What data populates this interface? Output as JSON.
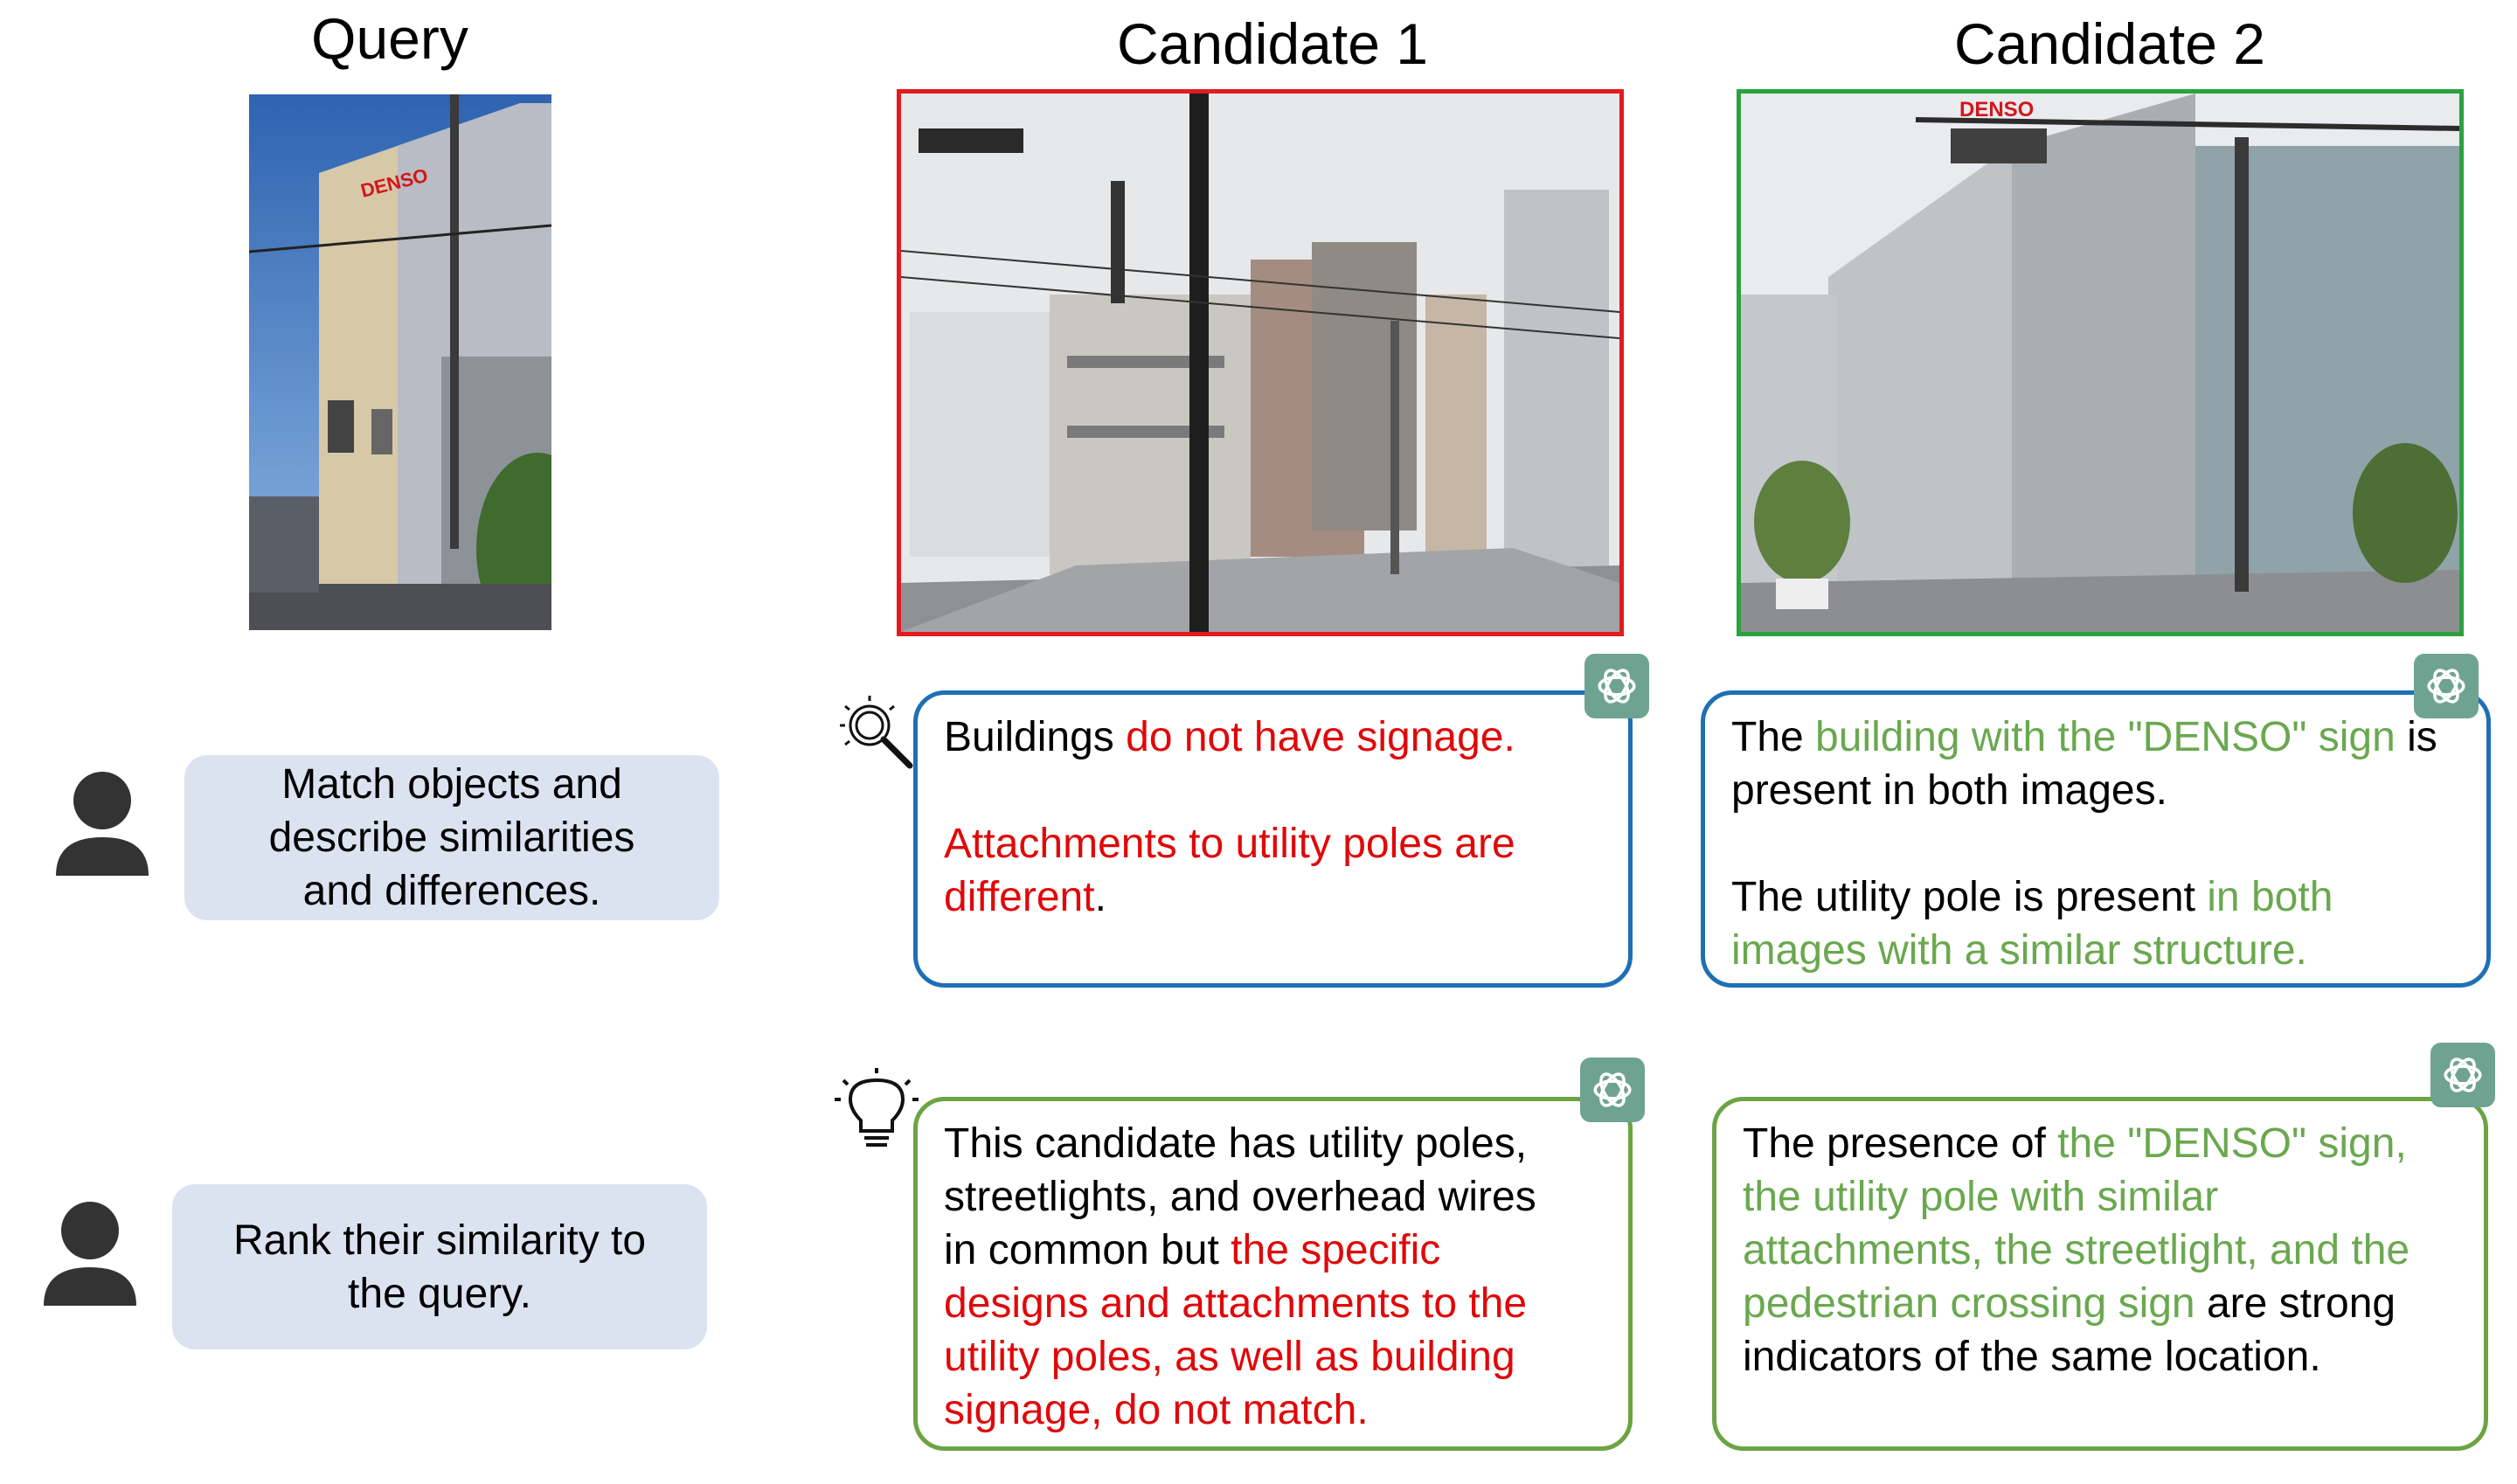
{
  "columns": {
    "query": "Query",
    "candidate1": "Candidate 1",
    "candidate2": "Candidate 2"
  },
  "sign_text": "DENSO",
  "prompts": {
    "p1": [
      "Match objects and",
      "describe similarities",
      "and differences."
    ],
    "p2": [
      "Rank their similarity to",
      "the query."
    ]
  },
  "responses": {
    "c1_describe": {
      "l1a": "Buildings ",
      "l1b": "do not have signage.",
      "l2": "Attachments to utility poles are",
      "l3a": "different",
      "l3b": "."
    },
    "c2_describe": {
      "l1a": "The ",
      "l1b": "building with the \"DENSO\" sign",
      "l1c": " is",
      "l2": "present in both images.",
      "l3a": "The utility pole is present ",
      "l3b": "in both",
      "l4": "images with a similar structure."
    },
    "c1_rank": {
      "l1": "This candidate has utility poles,",
      "l2": "streetlights, and overhead wires",
      "l3a": "in common but ",
      "l3b": "the specific",
      "l4": "designs and attachments to the",
      "l5": "utility poles, as well as building",
      "l6": "signage, do not match."
    },
    "c2_rank": {
      "l1a": "The presence of ",
      "l1b": "the \"DENSO\" sign,",
      "l2": "the utility pole with similar",
      "l3": "attachments, the streetlight, and the",
      "l4a": "pedestrian crossing sign",
      "l4b": " are strong",
      "l5": "indicators of the same location."
    }
  },
  "colors": {
    "mismatch": "#e0080a",
    "match": "#6aa84f",
    "candidate1_frame": "#e41a1c",
    "candidate2_frame": "#2ca23f",
    "describe_border": "#1f6fb5",
    "rank_border": "#6ca444",
    "prompt_bg": "#dbe3f1",
    "gpt_badge": "#6fa391"
  },
  "icons": [
    "user-icon",
    "magnifier-icon",
    "lightbulb-icon",
    "chatgpt-logo-icon"
  ]
}
